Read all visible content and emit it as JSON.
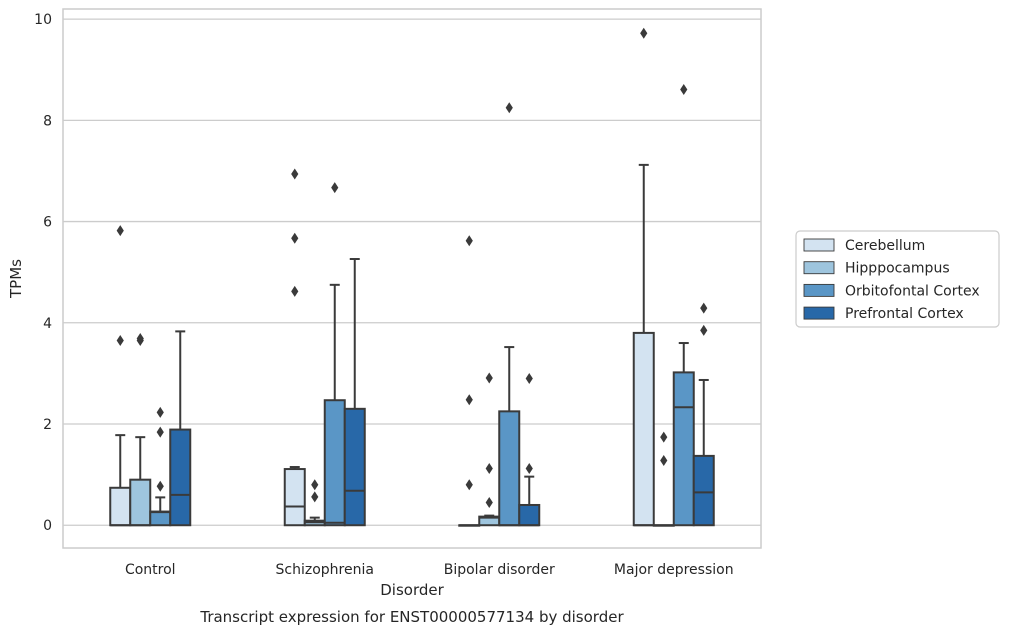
{
  "chart_data": {
    "type": "box",
    "title": "Transcript expression for ENST00000577134 by disorder",
    "xlabel": "Disorder",
    "ylabel": "TPMs",
    "ylim": [
      -0.45,
      10.2
    ],
    "yticks": [
      0,
      2,
      4,
      6,
      8,
      10
    ],
    "grid": "horizontal",
    "legend_position": "right",
    "categories": [
      "Control",
      "Schizophrenia",
      "Bipolar disorder",
      "Major depression"
    ],
    "series": [
      {
        "name": "Cerebellum",
        "color": "#d3e3f1",
        "boxes": [
          {
            "whislo": 0,
            "q1": 0,
            "med": 0,
            "q3": 0.74,
            "whishi": 1.78,
            "fliers": [
              3.65,
              5.82
            ]
          },
          {
            "whislo": 0,
            "q1": 0,
            "med": 0.37,
            "q3": 1.11,
            "whishi": 1.15,
            "fliers": [
              4.62,
              5.67,
              6.94
            ]
          },
          {
            "whislo": 0,
            "q1": 0,
            "med": 0,
            "q3": 0,
            "whishi": 0,
            "fliers": [
              0.8,
              2.48,
              5.62
            ]
          },
          {
            "whislo": 0,
            "q1": 0,
            "med": 0,
            "q3": 3.8,
            "whishi": 7.12,
            "fliers": [
              9.72
            ]
          }
        ]
      },
      {
        "name": "Hipppocampus",
        "color": "#9ec5de",
        "boxes": [
          {
            "whislo": 0,
            "q1": 0,
            "med": 0,
            "q3": 0.9,
            "whishi": 1.74,
            "fliers": [
              3.65,
              3.69
            ]
          },
          {
            "whislo": 0,
            "q1": 0,
            "med": 0.06,
            "q3": 0.09,
            "whishi": 0.15,
            "fliers": [
              0.56,
              0.8
            ]
          },
          {
            "whislo": 0,
            "q1": 0,
            "med": 0.15,
            "q3": 0.17,
            "whishi": 0.19,
            "fliers": [
              0.45,
              1.12,
              2.91
            ]
          },
          {
            "whislo": 0,
            "q1": 0,
            "med": 0,
            "q3": 0,
            "whishi": 0,
            "fliers": [
              1.28,
              1.74
            ]
          }
        ]
      },
      {
        "name": "Orbitofontal Cortex",
        "color": "#5a96c6",
        "boxes": [
          {
            "whislo": 0,
            "q1": 0,
            "med": 0.26,
            "q3": 0.27,
            "whishi": 0.55,
            "fliers": [
              0.77,
              1.84,
              2.23
            ]
          },
          {
            "whislo": 0,
            "q1": 0,
            "med": 0.05,
            "q3": 2.47,
            "whishi": 4.75,
            "fliers": [
              6.67
            ]
          },
          {
            "whislo": 0,
            "q1": 0,
            "med": 0,
            "q3": 2.25,
            "whishi": 3.52,
            "fliers": [
              8.25
            ]
          },
          {
            "whislo": 0,
            "q1": 0,
            "med": 2.33,
            "q3": 3.02,
            "whishi": 3.6,
            "fliers": [
              8.61
            ]
          }
        ]
      },
      {
        "name": "Prefrontal Cortex",
        "color": "#2868a8",
        "boxes": [
          {
            "whislo": 0,
            "q1": 0,
            "med": 0.6,
            "q3": 1.89,
            "whishi": 3.83,
            "fliers": []
          },
          {
            "whislo": 0,
            "q1": 0,
            "med": 0.68,
            "q3": 2.3,
            "whishi": 5.26,
            "fliers": []
          },
          {
            "whislo": 0,
            "q1": 0,
            "med": 0,
            "q3": 0.4,
            "whishi": 0.96,
            "fliers": [
              1.12,
              2.9
            ]
          },
          {
            "whislo": 0,
            "q1": 0,
            "med": 0.65,
            "q3": 1.37,
            "whishi": 2.87,
            "fliers": [
              3.85,
              4.29
            ]
          }
        ]
      }
    ]
  }
}
